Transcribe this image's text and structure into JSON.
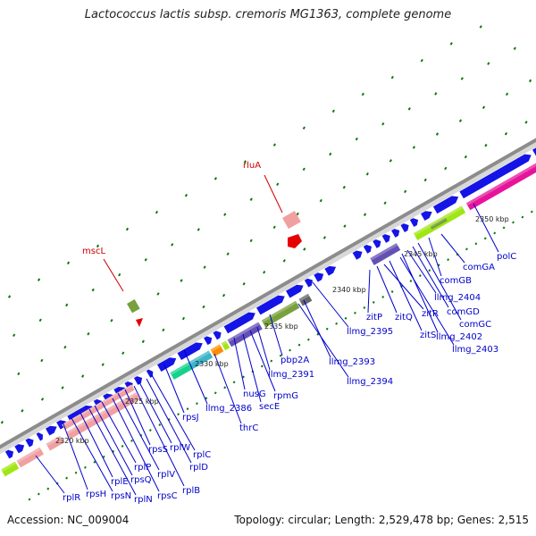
{
  "title": "Lactococcus lactis subsp. cremoris MG1363, complete genome",
  "accession": "Accession: NC_009004",
  "topology": "Topology: circular; Length: 2,529,478 bp; Genes: 2,515",
  "ticks": [
    "2320 kbp",
    "2325 kbp",
    "2330 kbp",
    "2335 kbp",
    "2340 kbp",
    "2345 kbp",
    "2350 kbp"
  ],
  "red_labels": [
    "rluA",
    "mscL"
  ],
  "gene_labels": [
    "polC",
    "comGA",
    "comGB",
    "comGC",
    "comGD",
    "llmg_2404",
    "llmg_2402",
    "llmg_2403",
    "zitS",
    "zitR",
    "zitQ",
    "zitP",
    "llmg_2395",
    "llmg_2393",
    "llmg_2394",
    "pbp2A",
    "llmg_2391",
    "rpmG",
    "secE",
    "nusG",
    "llmg_2386",
    "thrC",
    "rpsJ",
    "rplC",
    "rplD",
    "rplW",
    "rplB",
    "rpsS",
    "rplV",
    "rpsC",
    "rplP",
    "rpsQ",
    "rplN",
    "rplE",
    "rpsN",
    "rpsH",
    "rplR"
  ],
  "colors": {
    "backbone": "#a0a0a0",
    "forward_gene": "#1414e6",
    "tick_dots": "#0a7a0a",
    "gene_label": "#0000cc",
    "red_label": "#cc0000",
    "pink_block": "#f0a0a0",
    "magenta_block": "#e6149b",
    "lime_block": "#a0e614",
    "olive_block": "#78a03c",
    "purple_block": "#6450b4",
    "teal_block": "#3cb4c8",
    "green_block": "#14d28c",
    "orange_block": "#ff8c00"
  }
}
